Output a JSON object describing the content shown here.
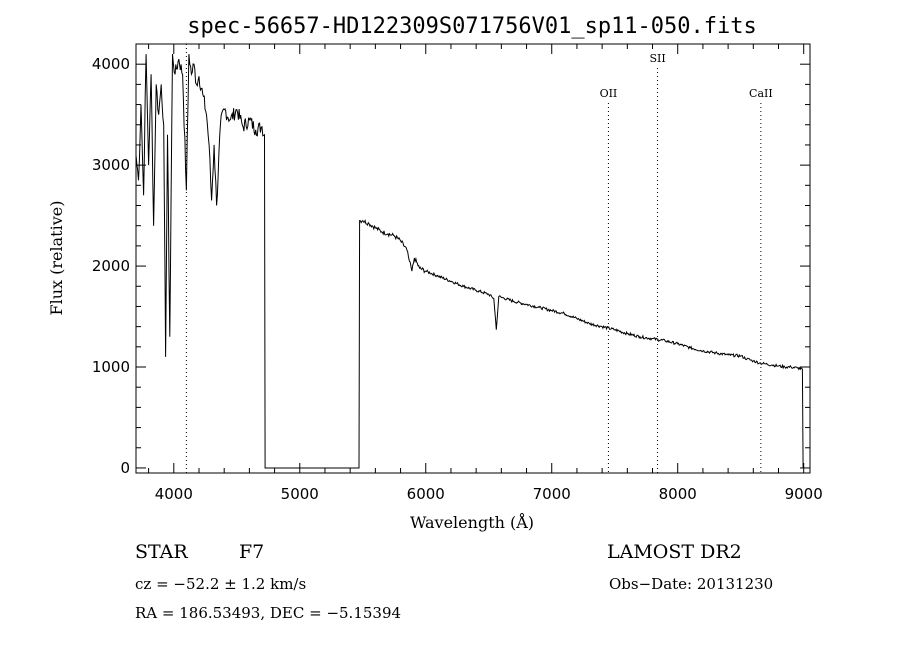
{
  "chart_data": {
    "type": "line",
    "title": "spec-56657-HD122309S071756V01_sp11-050.fits",
    "xlabel": "Wavelength (Å)",
    "ylabel": "Flux (relative)",
    "xlim": [
      3700,
      9050
    ],
    "ylim": [
      -50,
      4200
    ],
    "xticks": [
      4000,
      5000,
      6000,
      7000,
      8000,
      9000
    ],
    "xtick_labels": [
      "4000",
      "5000",
      "6000",
      "7000",
      "8000",
      "9000"
    ],
    "yticks": [
      0,
      1000,
      2000,
      3000,
      4000
    ],
    "ytick_labels": [
      "0",
      "1000",
      "2000",
      "3000",
      "4000"
    ],
    "grid": false,
    "spectral_lines": [
      {
        "label": "",
        "x": 4100
      },
      {
        "label": "OII",
        "x": 7450
      },
      {
        "label": "SII",
        "x": 7840
      },
      {
        "label": "CaII",
        "x": 8660
      }
    ],
    "series": [
      {
        "name": "",
        "points": [
          [
            3700,
            3100
          ],
          [
            3720,
            2850
          ],
          [
            3740,
            3600
          ],
          [
            3760,
            2700
          ],
          [
            3780,
            4100
          ],
          [
            3800,
            3000
          ],
          [
            3820,
            3900
          ],
          [
            3840,
            2400
          ],
          [
            3860,
            3800
          ],
          [
            3880,
            3500
          ],
          [
            3900,
            3800
          ],
          [
            3920,
            3400
          ],
          [
            3935,
            1100
          ],
          [
            3950,
            3300
          ],
          [
            3968,
            1300
          ],
          [
            3990,
            4100
          ],
          [
            4010,
            3900
          ],
          [
            4040,
            4050
          ],
          [
            4070,
            3900
          ],
          [
            4100,
            2750
          ],
          [
            4120,
            4100
          ],
          [
            4140,
            3900
          ],
          [
            4160,
            4000
          ],
          [
            4180,
            3800
          ],
          [
            4200,
            3880
          ],
          [
            4230,
            3700
          ],
          [
            4260,
            3500
          ],
          [
            4280,
            3200
          ],
          [
            4300,
            2650
          ],
          [
            4320,
            3200
          ],
          [
            4340,
            2600
          ],
          [
            4370,
            3400
          ],
          [
            4400,
            3550
          ],
          [
            4450,
            3450
          ],
          [
            4500,
            3550
          ],
          [
            4550,
            3380
          ],
          [
            4600,
            3450
          ],
          [
            4650,
            3350
          ],
          [
            4700,
            3380
          ],
          [
            4720,
            3300
          ],
          [
            4725,
            0
          ],
          [
            5470,
            0
          ],
          [
            5475,
            2450
          ],
          [
            5500,
            2450
          ],
          [
            5550,
            2420
          ],
          [
            5600,
            2380
          ],
          [
            5650,
            2340
          ],
          [
            5700,
            2320
          ],
          [
            5750,
            2300
          ],
          [
            5800,
            2250
          ],
          [
            5850,
            2160
          ],
          [
            5870,
            2050
          ],
          [
            5890,
            1950
          ],
          [
            5910,
            2080
          ],
          [
            5950,
            1980
          ],
          [
            6000,
            1950
          ],
          [
            6100,
            1900
          ],
          [
            6200,
            1850
          ],
          [
            6300,
            1800
          ],
          [
            6400,
            1760
          ],
          [
            6500,
            1720
          ],
          [
            6540,
            1680
          ],
          [
            6560,
            1370
          ],
          [
            6580,
            1700
          ],
          [
            6600,
            1690
          ],
          [
            6700,
            1650
          ],
          [
            6800,
            1620
          ],
          [
            6900,
            1590
          ],
          [
            7000,
            1560
          ],
          [
            7100,
            1530
          ],
          [
            7200,
            1480
          ],
          [
            7300,
            1430
          ],
          [
            7400,
            1400
          ],
          [
            7500,
            1370
          ],
          [
            7600,
            1330
          ],
          [
            7700,
            1300
          ],
          [
            7800,
            1280
          ],
          [
            7900,
            1260
          ],
          [
            8000,
            1230
          ],
          [
            8100,
            1190
          ],
          [
            8200,
            1160
          ],
          [
            8300,
            1140
          ],
          [
            8400,
            1120
          ],
          [
            8500,
            1110
          ],
          [
            8550,
            1080
          ],
          [
            8600,
            1060
          ],
          [
            8650,
            1040
          ],
          [
            8700,
            1030
          ],
          [
            8750,
            1020
          ],
          [
            8800,
            1010
          ],
          [
            8850,
            1000
          ],
          [
            8900,
            1000
          ],
          [
            8950,
            990
          ],
          [
            8990,
            980
          ],
          [
            8995,
            0
          ]
        ]
      }
    ]
  },
  "info": {
    "object_type": "STAR",
    "subclass": "F7",
    "survey": "LAMOST DR2",
    "cz": "cz = −52.2 ± 1.2 km/s",
    "obs_date": "Obs−Date: 20131230",
    "coords": "RA = 186.53493, DEC =  −5.15394"
  }
}
